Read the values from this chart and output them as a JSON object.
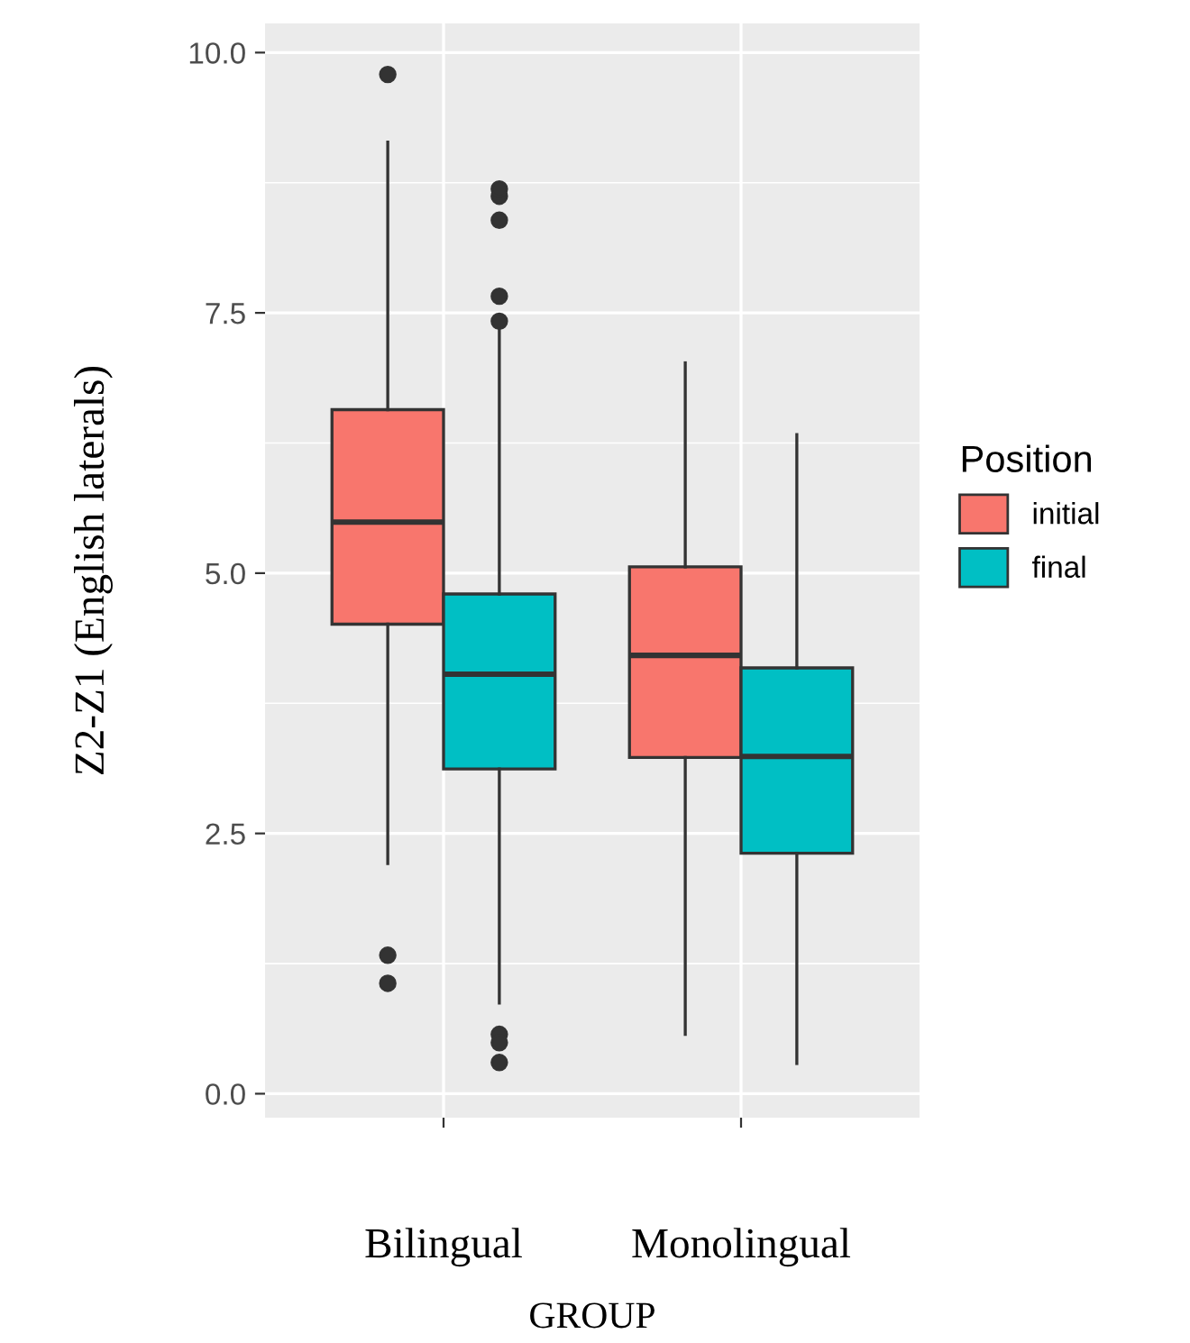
{
  "chart_data": {
    "type": "box",
    "xlabel": "GROUP",
    "ylabel": "Z2-Z1 (English laterals)",
    "legend_title": "Position",
    "categories": [
      "Bilingual",
      "Monolingual"
    ],
    "ylim": [
      -0.23,
      10.28
    ],
    "yticks": [
      {
        "value": 0,
        "label": "0.0"
      },
      {
        "value": 2.5,
        "label": "2.5"
      },
      {
        "value": 5,
        "label": "5.0"
      },
      {
        "value": 7.5,
        "label": "7.5"
      },
      {
        "value": 10,
        "label": "10.0"
      }
    ],
    "grid": true,
    "legend": "right",
    "series": [
      {
        "name": "initial",
        "color": "#f8766d",
        "boxes": [
          {
            "low": 2.21,
            "q1": 4.51,
            "median": 5.49,
            "q3": 6.57,
            "high": 9.14,
            "outliers": [
              9.79,
              1.33,
              1.06
            ]
          },
          {
            "low": 0.57,
            "q1": 3.23,
            "median": 4.21,
            "q3": 5.06,
            "high": 7.02
          }
        ]
      },
      {
        "name": "final",
        "color": "#00bfc4",
        "boxes": [
          {
            "low": 0.87,
            "q1": 3.12,
            "median": 4.03,
            "q3": 4.8,
            "high": 7.35,
            "outliers": [
              7.42,
              7.66,
              8.39,
              8.62,
              8.69,
              0.57,
              0.49,
              0.3
            ]
          },
          {
            "low": 0.29,
            "q1": 2.31,
            "median": 3.24,
            "q3": 4.09,
            "high": 6.33
          }
        ]
      }
    ]
  }
}
